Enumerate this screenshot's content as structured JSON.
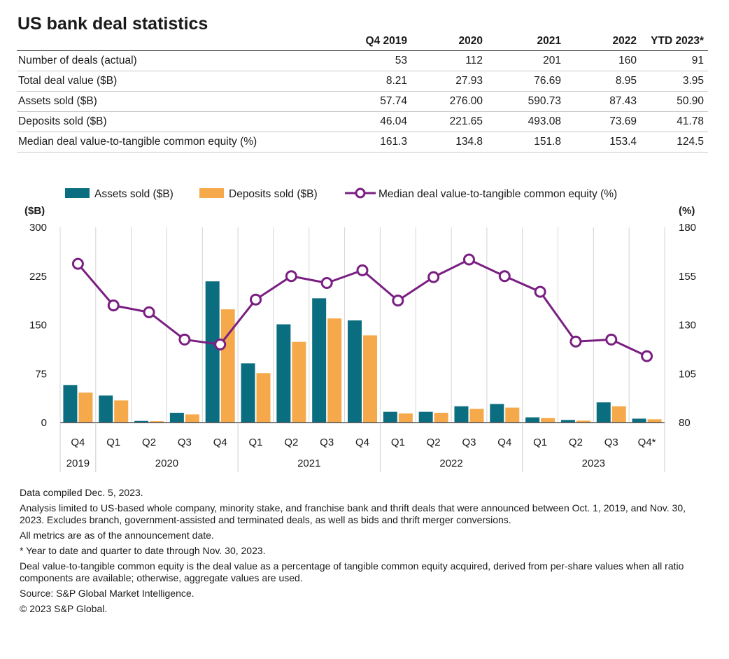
{
  "title": "US bank deal statistics",
  "table": {
    "columns": [
      "",
      "Q4 2019",
      "2020",
      "2021",
      "2022",
      "YTD 2023*"
    ],
    "rows": [
      {
        "label": "Number of deals (actual)",
        "values": [
          "53",
          "112",
          "201",
          "160",
          "91"
        ]
      },
      {
        "label": "Total deal value ($B)",
        "values": [
          "8.21",
          "27.93",
          "76.69",
          "8.95",
          "3.95"
        ]
      },
      {
        "label": "Assets sold ($B)",
        "values": [
          "57.74",
          "276.00",
          "590.73",
          "87.43",
          "50.90"
        ]
      },
      {
        "label": "Deposits sold ($B)",
        "values": [
          "46.04",
          "221.65",
          "493.08",
          "73.69",
          "41.78"
        ]
      },
      {
        "label": "Median deal value-to-tangible common equity (%)",
        "values": [
          "161.3",
          "134.8",
          "151.8",
          "153.4",
          "124.5"
        ]
      }
    ]
  },
  "chart_data": {
    "type": "bar",
    "categories": [
      "Q4",
      "Q1",
      "Q2",
      "Q3",
      "Q4",
      "Q1",
      "Q2",
      "Q3",
      "Q4",
      "Q1",
      "Q2",
      "Q3",
      "Q4",
      "Q1",
      "Q2",
      "Q3",
      "Q4*"
    ],
    "groups": [
      {
        "label": "2019",
        "count": 1
      },
      {
        "label": "2020",
        "count": 4
      },
      {
        "label": "2021",
        "count": 4
      },
      {
        "label": "2022",
        "count": 4
      },
      {
        "label": "2023",
        "count": 4
      }
    ],
    "series": [
      {
        "name": "Assets sold ($B)",
        "type": "bar",
        "axis": "left",
        "color": "#0b6e80",
        "values": [
          57.7,
          41.5,
          2.5,
          15.0,
          217.0,
          91.0,
          151.0,
          191.0,
          157.0,
          16.5,
          16.5,
          25.0,
          28.5,
          8.0,
          4.0,
          31.0,
          6.0
        ]
      },
      {
        "name": "Deposits sold ($B)",
        "type": "bar",
        "axis": "left",
        "color": "#f5a94a",
        "values": [
          46.0,
          34.0,
          2.0,
          12.5,
          174.0,
          76.0,
          124.0,
          160.0,
          134.0,
          14.0,
          15.0,
          21.0,
          23.0,
          7.0,
          3.0,
          25.0,
          5.0
        ]
      },
      {
        "name": "Median deal value-to-tangible common equity (%)",
        "type": "line",
        "axis": "right",
        "color": "#7a1f82",
        "values": [
          161.3,
          140.0,
          136.5,
          122.5,
          120.0,
          143.0,
          155.0,
          151.5,
          158.0,
          142.5,
          154.5,
          163.5,
          155.0,
          147.0,
          121.5,
          122.5,
          114.0
        ]
      }
    ],
    "y_left": {
      "label": "($B)",
      "min": 0,
      "max": 300,
      "ticks": [
        0,
        75,
        150,
        225,
        300
      ]
    },
    "y_right": {
      "label": "(%)",
      "min": 80,
      "max": 180,
      "ticks": [
        80,
        105,
        130,
        155,
        180
      ]
    },
    "legend_position": "top"
  },
  "notes": [
    "Data compiled Dec. 5, 2023.",
    "Analysis limited to US-based whole company, minority stake, and franchise bank and thrift deals that were announced between Oct. 1, 2019, and Nov. 30, 2023. Excludes branch, government-assisted and terminated deals, as well as bids and thrift merger conversions.",
    "All metrics are as of the announcement date.",
    "* Year to date and quarter to date through Nov. 30, 2023.",
    "Deal value-to-tangible common equity is the deal value as a percentage of tangible common equity acquired, derived from per-share values when all ratio components are available; otherwise, aggregate values are used.",
    "Source: S&P Global Market Intelligence.",
    "© 2023 S&P Global."
  ]
}
